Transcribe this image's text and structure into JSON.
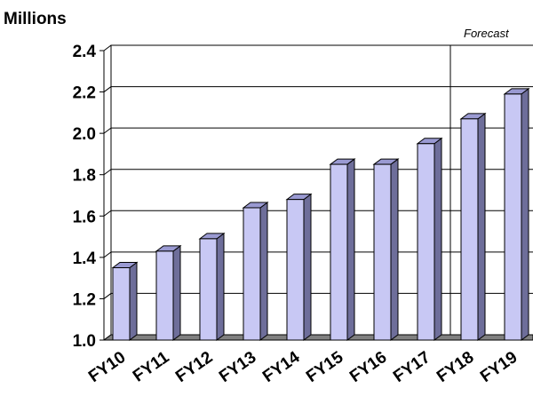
{
  "chart_data": {
    "type": "bar",
    "ylabel": "Millions",
    "annotation": "Forecast",
    "categories": [
      "FY10",
      "FY11",
      "FY12",
      "FY13",
      "FY14",
      "FY15",
      "FY16",
      "FY17",
      "FY18",
      "FY19"
    ],
    "values": [
      1.35,
      1.43,
      1.49,
      1.64,
      1.68,
      1.85,
      1.85,
      1.95,
      2.07,
      2.19
    ],
    "ylim": [
      1.0,
      2.4
    ],
    "yticks": [
      "1.0",
      "1.2",
      "1.4",
      "1.6",
      "1.8",
      "2.0",
      "2.2",
      "2.4"
    ],
    "grid": true,
    "forecast_start": "FY18",
    "colors": {
      "bar_front": "#c8c8f4",
      "bar_side": "#6e6e9a",
      "bar_top": "#9a9ad2",
      "floor": "#808080"
    }
  }
}
